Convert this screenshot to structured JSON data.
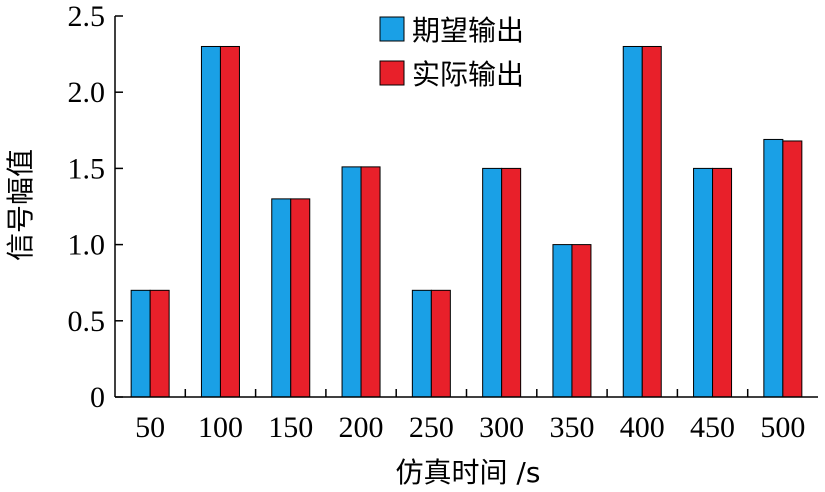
{
  "chart_data": {
    "type": "bar",
    "xlabel": "仿真时间 /s",
    "ylabel": "信号幅值",
    "categories": [
      "50",
      "100",
      "150",
      "200",
      "250",
      "300",
      "350",
      "400",
      "450",
      "500"
    ],
    "series": [
      {
        "name": "期望输出",
        "color": "#1aa0e6",
        "values": [
          0.7,
          2.3,
          1.3,
          1.51,
          0.7,
          1.5,
          1.0,
          2.3,
          1.5,
          1.69
        ]
      },
      {
        "name": "实际输出",
        "color": "#e8202a",
        "values": [
          0.7,
          2.3,
          1.3,
          1.51,
          0.7,
          1.5,
          1.0,
          2.3,
          1.5,
          1.68
        ]
      }
    ],
    "ylim": [
      0,
      2.5
    ],
    "yticks": [
      "0",
      "0.5",
      "1.0",
      "1.5",
      "2.0",
      "2.5"
    ],
    "grid": false,
    "legend_position": "top-center"
  }
}
